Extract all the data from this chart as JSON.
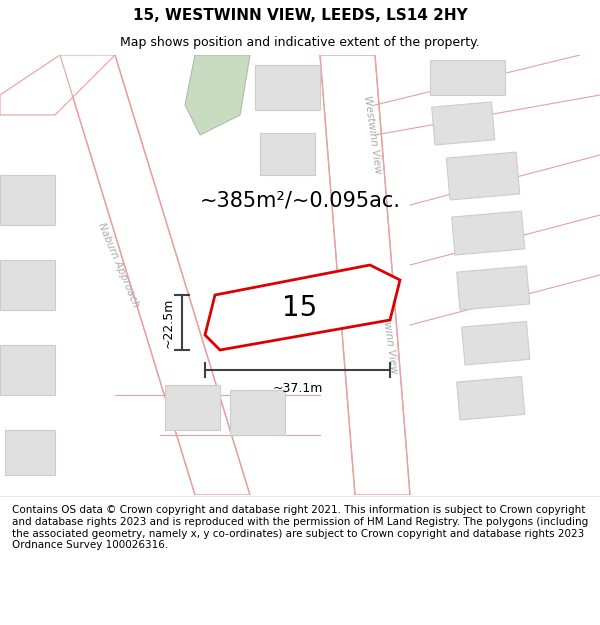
{
  "title": "15, WESTWINN VIEW, LEEDS, LS14 2HY",
  "subtitle": "Map shows position and indicative extent of the property.",
  "area_text": "~385m²/~0.095ac.",
  "property_number": "15",
  "width_label": "~37.1m",
  "height_label": "~22.5m",
  "footer_text": "Contains OS data © Crown copyright and database right 2021. This information is subject to Crown copyright and database rights 2023 and is reproduced with the permission of HM Land Registry. The polygons (including the associated geometry, namely x, y co-ordinates) are subject to Crown copyright and database rights 2023 Ordnance Survey 100026316.",
  "bg_color": "#f7f7f5",
  "road_outline_color": "#e8a0a0",
  "road_fill_color": "#ffffff",
  "block_color": "#e0e0e0",
  "block_outline_color": "#cccccc",
  "property_outline_color": "#dd0000",
  "property_fill_color": "#ffffff",
  "dim_line_color": "#404040",
  "green_color": "#c8dcc0",
  "green_outline": "#aabcaa",
  "road_label_color": "#aaaaaa",
  "title_fontsize": 11,
  "subtitle_fontsize": 9,
  "area_fontsize": 15,
  "label_fontsize": 20,
  "dim_fontsize": 9,
  "footer_fontsize": 7.5
}
